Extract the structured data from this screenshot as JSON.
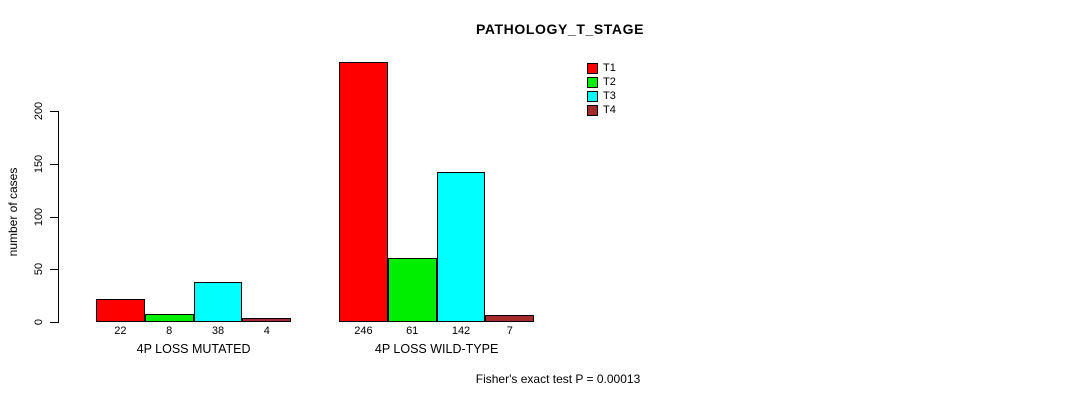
{
  "chart_data": {
    "type": "bar",
    "title": "PATHOLOGY_T_STAGE",
    "ylabel": "number of cases",
    "xlabel": "",
    "categories": [
      "4P LOSS MUTATED",
      "4P LOSS WILD-TYPE"
    ],
    "series": [
      {
        "name": "T1",
        "color": "#ff0000",
        "values": [
          22,
          246
        ]
      },
      {
        "name": "T2",
        "color": "#00ee00",
        "values": [
          8,
          61
        ]
      },
      {
        "name": "T3",
        "color": "#00ffff",
        "values": [
          38,
          142
        ]
      },
      {
        "name": "T4",
        "color": "#a52a2a",
        "values": [
          4,
          7
        ]
      }
    ],
    "yticks": [
      0,
      50,
      100,
      150,
      200
    ],
    "ylim": [
      0,
      250
    ],
    "grid": false,
    "legend_position": "top-right",
    "bar_value_labels_shown": true,
    "footnote": "Fisher's exact test P = 0.00013"
  }
}
